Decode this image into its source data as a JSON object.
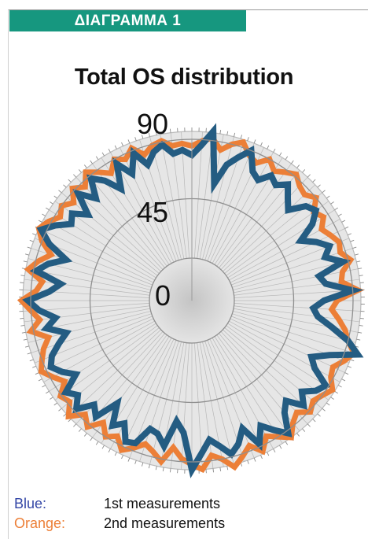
{
  "header": {
    "label": "ΔΙΑΓΡΑΜΜΑ 1"
  },
  "chart_data": {
    "type": "radar",
    "title": "Total OS distribution",
    "r_ticks": [
      "90",
      "45",
      "0"
    ],
    "rlim": [
      0,
      100
    ],
    "n_points": 100,
    "series": [
      {
        "name": "2nd measurements",
        "color": "#ec7f37",
        "values": [
          85,
          89,
          92,
          84,
          90,
          94,
          86,
          83,
          90,
          84,
          88,
          92,
          87,
          85,
          90,
          82,
          86,
          80,
          84,
          88,
          86,
          92,
          84,
          82,
          94,
          78,
          74,
          80,
          86,
          90,
          97,
          92,
          86,
          88,
          94,
          90,
          87,
          91,
          84,
          88,
          96,
          90,
          85,
          94,
          86,
          92,
          98,
          90,
          86,
          96,
          92,
          88,
          80,
          92,
          86,
          82,
          88,
          93,
          85,
          90,
          82,
          92,
          86,
          96,
          88,
          91,
          82,
          88,
          94,
          90,
          86,
          80,
          92,
          84,
          90,
          97,
          86,
          82,
          94,
          88,
          80,
          90,
          96,
          92,
          86,
          90,
          84,
          92,
          86,
          94,
          88,
          82,
          90,
          86,
          92,
          84,
          89,
          91,
          86,
          87
        ]
      },
      {
        "name": "1st measurements",
        "color": "#245c82",
        "values": [
          78,
          86,
          97,
          58,
          74,
          82,
          90,
          76,
          72,
          80,
          76,
          82,
          74,
          68,
          80,
          84,
          76,
          62,
          72,
          80,
          74,
          86,
          66,
          70,
          90,
          68,
          60,
          64,
          76,
          90,
          100,
          80,
          68,
          74,
          88,
          84,
          76,
          84,
          72,
          78,
          92,
          84,
          76,
          88,
          72,
          82,
          88,
          80,
          74,
          84,
          96,
          68,
          60,
          80,
          72,
          70,
          84,
          86,
          74,
          80,
          64,
          82,
          76,
          88,
          80,
          86,
          72,
          80,
          86,
          82,
          74,
          66,
          80,
          72,
          84,
          92,
          76,
          68,
          88,
          80,
          68,
          84,
          94,
          86,
          76,
          80,
          70,
          86,
          74,
          88,
          80,
          68,
          86,
          74,
          88,
          76,
          84,
          88,
          80,
          82
        ]
      }
    ]
  },
  "legend": [
    {
      "key": "Blue",
      "desc": "1st measurements",
      "color": "#3346a6"
    },
    {
      "key": "Orange",
      "desc": "2nd measurements",
      "color": "#ec7f37"
    }
  ]
}
